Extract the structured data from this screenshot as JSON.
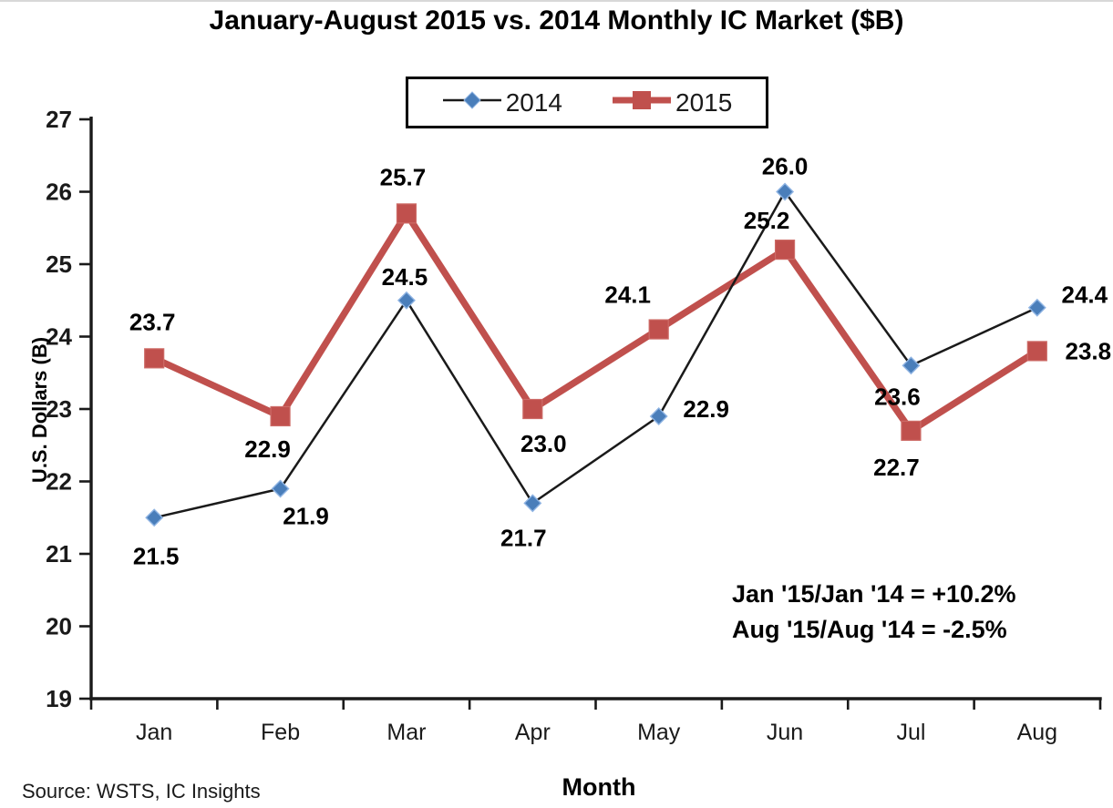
{
  "source": "Source: WSTS, IC Insights",
  "chart_data": {
    "type": "line",
    "title": "January-August 2015 vs. 2014 Monthly IC Market ($B)",
    "xlabel": "Month",
    "ylabel": "U.S. Dollars (B)",
    "categories": [
      "Jan",
      "Feb",
      "Mar",
      "Apr",
      "May",
      "Jun",
      "Jul",
      "Aug"
    ],
    "series": [
      {
        "name": "2014",
        "marker": "diamond",
        "marker_color": "#4A7EBA",
        "line_color": "#1a1a1a",
        "values": [
          21.5,
          21.9,
          24.5,
          21.7,
          22.9,
          26.0,
          23.6,
          24.4
        ]
      },
      {
        "name": "2015",
        "marker": "square",
        "marker_color": "#C0504D",
        "line_color": "#C0504D",
        "values": [
          23.7,
          22.9,
          25.7,
          23.0,
          24.1,
          25.2,
          22.7,
          23.8
        ]
      }
    ],
    "ylim": [
      19,
      27
    ],
    "yticks": [
      19,
      20,
      21,
      22,
      23,
      24,
      25,
      26,
      27
    ],
    "grid": false,
    "legend_position": "top-center",
    "annotations": [
      "Jan '15/Jan '14 = +10.2%",
      "Aug '15/Aug '14 = -2.5%"
    ]
  }
}
